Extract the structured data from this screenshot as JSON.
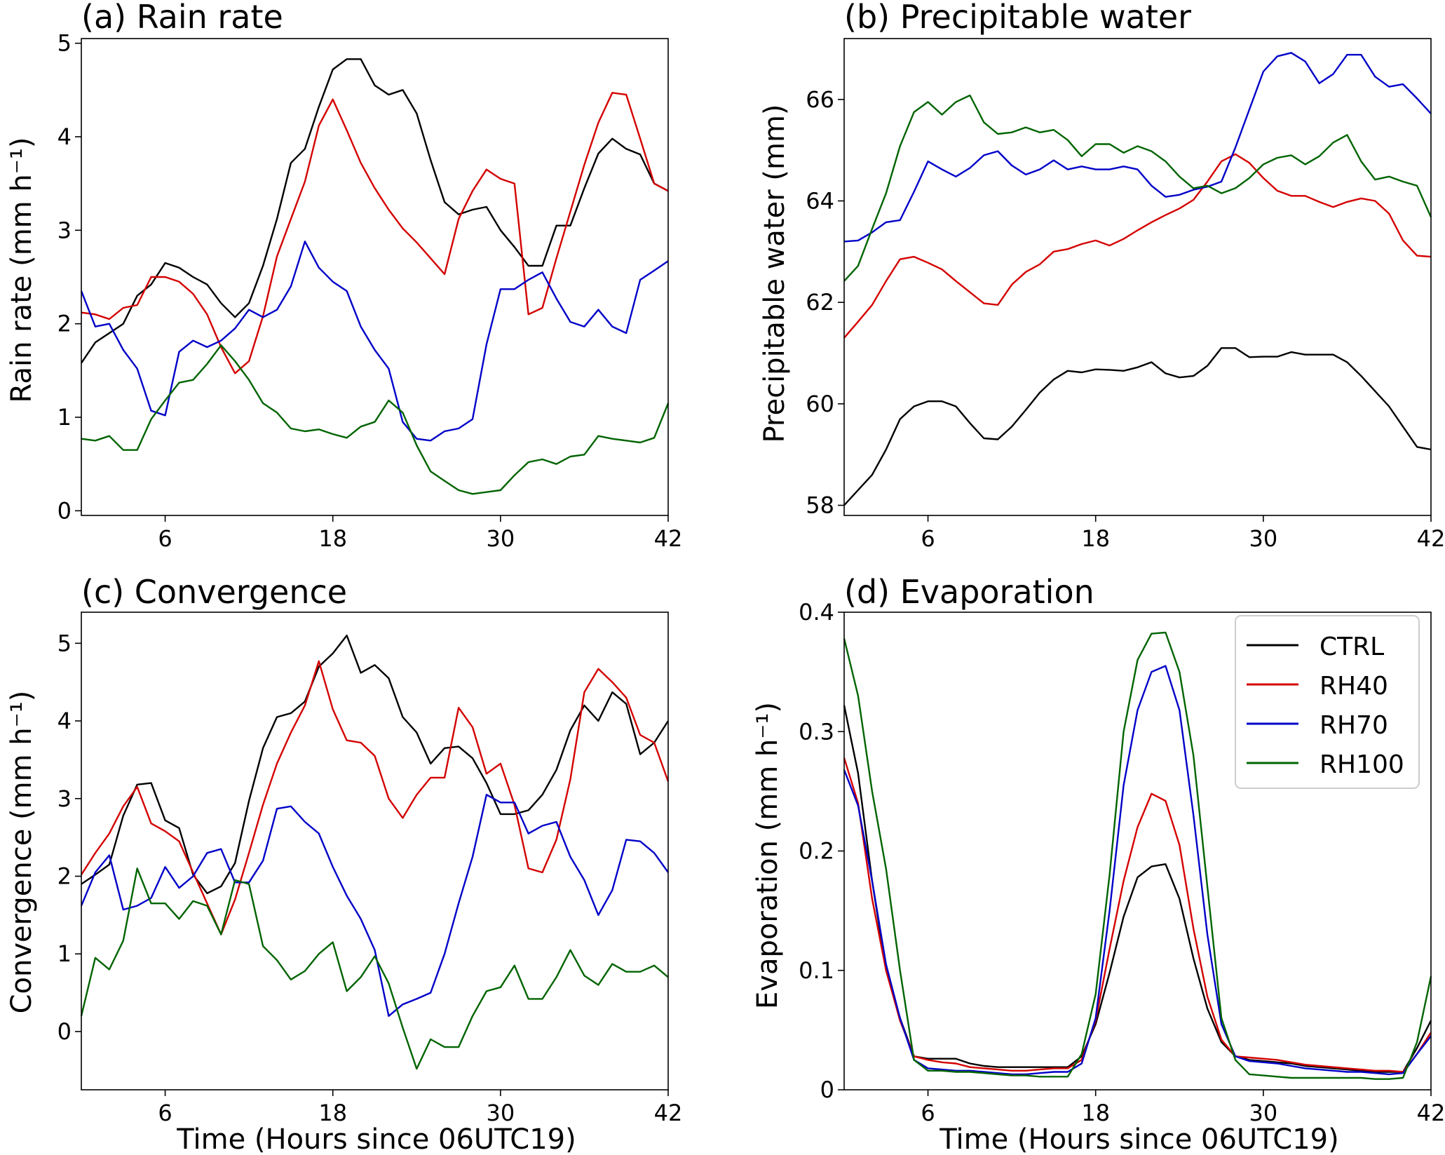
{
  "x_ticks": [
    "6",
    "18",
    "30",
    "42"
  ],
  "x_tick_values": [
    6,
    18,
    30,
    42
  ],
  "xlim": [
    0,
    42
  ],
  "colors": {
    "CTRL": "#000000",
    "RH40": "#d40000",
    "RH70": "#0000c8",
    "RH100": "#006400"
  },
  "chart_data": [
    {
      "type": "line",
      "title": "(a) Rain rate",
      "xlabel": "",
      "ylabel": "Rain rate (mm h⁻¹)",
      "ylim": [
        -0.05,
        5.05
      ],
      "yticks": [
        0,
        1,
        2,
        3,
        4,
        5
      ],
      "ytick_labels": [
        "0",
        "1",
        "2",
        "3",
        "4",
        "5"
      ],
      "grid": false,
      "legend": false,
      "x": [
        0,
        1,
        2,
        3,
        4,
        5,
        6,
        7,
        8,
        9,
        10,
        11,
        12,
        13,
        14,
        15,
        16,
        17,
        18,
        19,
        20,
        21,
        22,
        23,
        24,
        25,
        26,
        27,
        28,
        29,
        30,
        31,
        32,
        33,
        34,
        35,
        36,
        37,
        38,
        39,
        40,
        41,
        42
      ],
      "series": [
        {
          "name": "CTRL",
          "values": [
            1.58,
            1.8,
            1.9,
            2.0,
            2.3,
            2.42,
            2.65,
            2.6,
            2.5,
            2.42,
            2.22,
            2.07,
            2.22,
            2.62,
            3.12,
            3.72,
            3.87,
            4.32,
            4.72,
            4.83,
            4.83,
            4.55,
            4.45,
            4.5,
            4.25,
            3.75,
            3.3,
            3.17,
            3.22,
            3.25,
            3.0,
            2.82,
            2.62,
            2.62,
            3.05,
            3.05,
            3.45,
            3.82,
            3.98,
            3.87,
            3.81,
            3.5,
            3.42
          ]
        },
        {
          "name": "RH40",
          "values": [
            2.12,
            2.1,
            2.05,
            2.17,
            2.2,
            2.5,
            2.5,
            2.45,
            2.32,
            2.1,
            1.75,
            1.47,
            1.6,
            2.08,
            2.72,
            3.12,
            3.52,
            4.12,
            4.4,
            4.07,
            3.72,
            3.45,
            3.22,
            3.02,
            2.87,
            2.7,
            2.53,
            3.12,
            3.42,
            3.65,
            3.55,
            3.5,
            2.1,
            2.17,
            2.7,
            3.2,
            3.7,
            4.15,
            4.47,
            4.45,
            3.98,
            3.5,
            3.42
          ]
        },
        {
          "name": "RH70",
          "values": [
            2.35,
            1.97,
            2.0,
            1.72,
            1.52,
            1.07,
            1.02,
            1.7,
            1.82,
            1.75,
            1.82,
            1.95,
            2.15,
            2.07,
            2.15,
            2.4,
            2.88,
            2.6,
            2.45,
            2.35,
            1.97,
            1.72,
            1.52,
            0.95,
            0.77,
            0.75,
            0.85,
            0.88,
            0.98,
            1.78,
            2.37,
            2.37,
            2.47,
            2.55,
            2.27,
            2.02,
            1.97,
            2.15,
            1.97,
            1.9,
            2.47,
            2.57,
            2.67
          ]
        },
        {
          "name": "RH100",
          "values": [
            0.77,
            0.75,
            0.8,
            0.65,
            0.65,
            0.98,
            1.18,
            1.37,
            1.4,
            1.57,
            1.77,
            1.6,
            1.4,
            1.15,
            1.05,
            0.88,
            0.85,
            0.87,
            0.82,
            0.78,
            0.9,
            0.95,
            1.18,
            1.05,
            0.7,
            0.42,
            0.32,
            0.22,
            0.18,
            0.2,
            0.22,
            0.38,
            0.52,
            0.55,
            0.5,
            0.58,
            0.6,
            0.8,
            0.77,
            0.75,
            0.73,
            0.78,
            1.15
          ]
        }
      ]
    },
    {
      "type": "line",
      "title": "(b) Precipitable water",
      "xlabel": "",
      "ylabel": "Precipitable water (mm)",
      "ylim": [
        57.8,
        67.2
      ],
      "yticks": [
        58,
        60,
        62,
        64,
        66
      ],
      "ytick_labels": [
        "58",
        "60",
        "62",
        "64",
        "66"
      ],
      "grid": false,
      "legend": false,
      "x": [
        0,
        1,
        2,
        3,
        4,
        5,
        6,
        7,
        8,
        9,
        10,
        11,
        12,
        13,
        14,
        15,
        16,
        17,
        18,
        19,
        20,
        21,
        22,
        23,
        24,
        25,
        26,
        27,
        28,
        29,
        30,
        31,
        32,
        33,
        34,
        35,
        36,
        37,
        38,
        39,
        40,
        41,
        42
      ],
      "series": [
        {
          "name": "CTRL",
          "values": [
            58.0,
            58.3,
            58.6,
            59.1,
            59.7,
            59.95,
            60.05,
            60.05,
            59.95,
            59.62,
            59.32,
            59.3,
            59.55,
            59.88,
            60.22,
            60.48,
            60.65,
            60.62,
            60.68,
            60.67,
            60.65,
            60.72,
            60.82,
            60.6,
            60.52,
            60.55,
            60.75,
            61.1,
            61.1,
            60.92,
            60.93,
            60.93,
            61.02,
            60.97,
            60.97,
            60.97,
            60.82,
            60.55,
            60.25,
            59.95,
            59.55,
            59.15,
            59.1
          ]
        },
        {
          "name": "RH40",
          "values": [
            61.3,
            61.62,
            61.95,
            62.42,
            62.85,
            62.9,
            62.78,
            62.65,
            62.42,
            62.2,
            61.98,
            61.95,
            62.35,
            62.6,
            62.75,
            63.0,
            63.05,
            63.15,
            63.22,
            63.12,
            63.25,
            63.42,
            63.58,
            63.72,
            63.85,
            64.02,
            64.38,
            64.78,
            64.92,
            64.75,
            64.45,
            64.2,
            64.1,
            64.1,
            63.98,
            63.88,
            63.98,
            64.05,
            64.0,
            63.75,
            63.22,
            62.92,
            62.9
          ]
        },
        {
          "name": "RH70",
          "values": [
            63.2,
            63.22,
            63.38,
            63.58,
            63.62,
            64.18,
            64.78,
            64.62,
            64.48,
            64.65,
            64.9,
            64.98,
            64.7,
            64.52,
            64.62,
            64.8,
            64.62,
            64.68,
            64.62,
            64.62,
            64.68,
            64.62,
            64.3,
            64.08,
            64.12,
            64.22,
            64.28,
            64.38,
            65.05,
            65.8,
            66.55,
            66.85,
            66.92,
            66.75,
            66.32,
            66.5,
            66.88,
            66.88,
            66.45,
            66.25,
            66.3,
            66.02,
            65.72
          ]
        },
        {
          "name": "RH100",
          "values": [
            62.42,
            62.72,
            63.45,
            64.15,
            65.08,
            65.75,
            65.95,
            65.7,
            65.95,
            66.08,
            65.55,
            65.32,
            65.35,
            65.45,
            65.35,
            65.4,
            65.2,
            64.88,
            65.12,
            65.12,
            64.95,
            65.08,
            64.98,
            64.78,
            64.48,
            64.25,
            64.3,
            64.15,
            64.25,
            64.45,
            64.72,
            64.85,
            64.9,
            64.72,
            64.88,
            65.15,
            65.3,
            64.78,
            64.42,
            64.48,
            64.38,
            64.3,
            63.68
          ]
        }
      ]
    },
    {
      "type": "line",
      "title": "(c) Convergence",
      "xlabel": "Time (Hours since 06UTC19)",
      "ylabel": "Convergence (mm h⁻¹)",
      "ylim": [
        -0.75,
        5.4
      ],
      "yticks": [
        0,
        1,
        2,
        3,
        4,
        5
      ],
      "ytick_labels": [
        "0",
        "1",
        "2",
        "3",
        "4",
        "5"
      ],
      "grid": false,
      "legend": false,
      "x": [
        0,
        1,
        2,
        3,
        4,
        5,
        6,
        7,
        8,
        9,
        10,
        11,
        12,
        13,
        14,
        15,
        16,
        17,
        18,
        19,
        20,
        21,
        22,
        23,
        24,
        25,
        26,
        27,
        28,
        29,
        30,
        31,
        32,
        33,
        34,
        35,
        36,
        37,
        38,
        39,
        40,
        41,
        42
      ],
      "series": [
        {
          "name": "CTRL",
          "values": [
            1.9,
            2.02,
            2.15,
            2.78,
            3.18,
            3.2,
            2.72,
            2.62,
            2.02,
            1.78,
            1.87,
            2.17,
            2.97,
            3.65,
            4.05,
            4.1,
            4.25,
            4.7,
            4.87,
            5.1,
            4.62,
            4.72,
            4.55,
            4.05,
            3.85,
            3.45,
            3.65,
            3.67,
            3.52,
            3.2,
            2.8,
            2.8,
            2.85,
            3.05,
            3.37,
            3.88,
            4.2,
            4.0,
            4.37,
            4.22,
            3.57,
            3.72,
            4.0
          ]
        },
        {
          "name": "RH40",
          "values": [
            2.02,
            2.3,
            2.55,
            2.9,
            3.15,
            2.68,
            2.58,
            2.45,
            2.05,
            1.65,
            1.25,
            1.7,
            2.3,
            2.92,
            3.45,
            3.85,
            4.2,
            4.77,
            4.15,
            3.75,
            3.72,
            3.55,
            3.0,
            2.75,
            3.05,
            3.27,
            3.27,
            4.17,
            3.92,
            3.32,
            3.45,
            2.92,
            2.1,
            2.05,
            2.47,
            3.25,
            4.37,
            4.67,
            4.5,
            4.3,
            3.82,
            3.72,
            3.22
          ]
        },
        {
          "name": "RH70",
          "values": [
            1.62,
            2.05,
            2.27,
            1.57,
            1.62,
            1.72,
            2.12,
            1.85,
            2.0,
            2.3,
            2.35,
            1.92,
            1.92,
            2.2,
            2.87,
            2.9,
            2.7,
            2.55,
            2.12,
            1.75,
            1.45,
            1.05,
            0.2,
            0.35,
            0.42,
            0.5,
            1.0,
            1.65,
            2.25,
            3.05,
            2.95,
            2.95,
            2.55,
            2.65,
            2.7,
            2.25,
            1.95,
            1.5,
            1.82,
            2.47,
            2.45,
            2.3,
            2.05
          ]
        },
        {
          "name": "RH100",
          "values": [
            0.2,
            0.95,
            0.8,
            1.17,
            2.1,
            1.65,
            1.65,
            1.45,
            1.68,
            1.62,
            1.25,
            1.95,
            1.9,
            1.1,
            0.92,
            0.67,
            0.78,
            1.0,
            1.15,
            0.52,
            0.7,
            0.97,
            0.62,
            0.05,
            -0.48,
            -0.1,
            -0.2,
            -0.2,
            0.2,
            0.52,
            0.57,
            0.85,
            0.42,
            0.42,
            0.7,
            1.05,
            0.72,
            0.6,
            0.87,
            0.77,
            0.77,
            0.85,
            0.7
          ]
        }
      ]
    },
    {
      "type": "line",
      "title": "(d) Evaporation",
      "xlabel": "Time (Hours since 06UTC19)",
      "ylabel": "Evaporation (mm h⁻¹)",
      "ylim": [
        0,
        0.4
      ],
      "yticks": [
        0,
        0.1,
        0.2,
        0.3,
        0.4
      ],
      "ytick_labels": [
        "0",
        "0.1",
        "0.2",
        "0.3",
        "0.4"
      ],
      "grid": false,
      "legend": true,
      "legend_loc": "upper right",
      "x": [
        0,
        1,
        2,
        3,
        4,
        5,
        6,
        7,
        8,
        9,
        10,
        11,
        12,
        13,
        14,
        15,
        16,
        17,
        18,
        19,
        20,
        21,
        22,
        23,
        24,
        25,
        26,
        27,
        28,
        29,
        30,
        31,
        32,
        33,
        34,
        35,
        36,
        37,
        38,
        39,
        40,
        41,
        42
      ],
      "series": [
        {
          "name": "CTRL",
          "values": [
            0.322,
            0.265,
            0.175,
            0.1,
            0.06,
            0.028,
            0.026,
            0.026,
            0.026,
            0.022,
            0.02,
            0.019,
            0.019,
            0.019,
            0.019,
            0.019,
            0.019,
            0.028,
            0.055,
            0.098,
            0.145,
            0.178,
            0.187,
            0.189,
            0.16,
            0.11,
            0.068,
            0.04,
            0.028,
            0.025,
            0.024,
            0.023,
            0.022,
            0.02,
            0.019,
            0.018,
            0.017,
            0.016,
            0.015,
            0.015,
            0.015,
            0.035,
            0.058
          ]
        },
        {
          "name": "RH40",
          "values": [
            0.278,
            0.24,
            0.16,
            0.1,
            0.058,
            0.028,
            0.025,
            0.023,
            0.022,
            0.019,
            0.018,
            0.017,
            0.016,
            0.016,
            0.017,
            0.018,
            0.018,
            0.025,
            0.058,
            0.118,
            0.175,
            0.22,
            0.248,
            0.242,
            0.205,
            0.135,
            0.078,
            0.042,
            0.028,
            0.027,
            0.026,
            0.025,
            0.023,
            0.021,
            0.02,
            0.019,
            0.018,
            0.017,
            0.016,
            0.016,
            0.015,
            0.03,
            0.048
          ]
        },
        {
          "name": "RH70",
          "values": [
            0.268,
            0.238,
            0.175,
            0.105,
            0.06,
            0.025,
            0.018,
            0.017,
            0.016,
            0.016,
            0.015,
            0.014,
            0.013,
            0.013,
            0.014,
            0.015,
            0.015,
            0.022,
            0.06,
            0.15,
            0.255,
            0.318,
            0.35,
            0.355,
            0.318,
            0.23,
            0.13,
            0.055,
            0.028,
            0.024,
            0.023,
            0.022,
            0.02,
            0.018,
            0.017,
            0.016,
            0.015,
            0.015,
            0.014,
            0.013,
            0.014,
            0.03,
            0.045
          ]
        },
        {
          "name": "RH100",
          "values": [
            0.378,
            0.33,
            0.25,
            0.185,
            0.1,
            0.025,
            0.016,
            0.016,
            0.015,
            0.015,
            0.014,
            0.013,
            0.012,
            0.012,
            0.011,
            0.011,
            0.011,
            0.03,
            0.08,
            0.18,
            0.3,
            0.36,
            0.382,
            0.383,
            0.35,
            0.28,
            0.17,
            0.06,
            0.025,
            0.013,
            0.012,
            0.011,
            0.01,
            0.01,
            0.01,
            0.01,
            0.01,
            0.01,
            0.009,
            0.009,
            0.01,
            0.04,
            0.095
          ]
        }
      ]
    }
  ]
}
